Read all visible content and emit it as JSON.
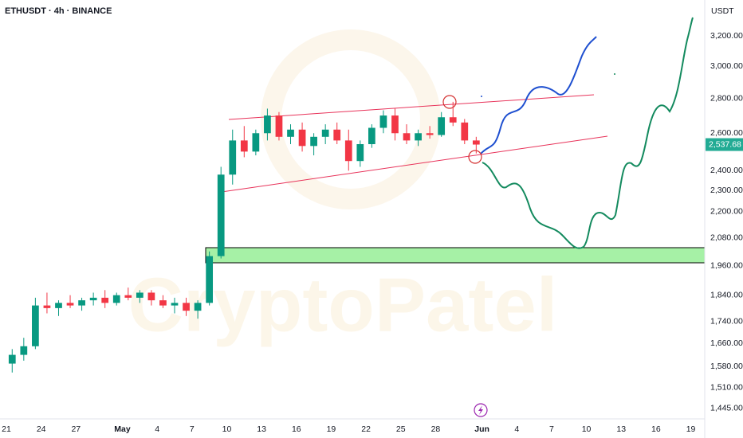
{
  "chart_data": {
    "type": "candlestick",
    "title": "ETHUSDT · 4h · BINANCE",
    "y_unit": "USDT",
    "watermark": "CryptoPatel",
    "log_scale": true,
    "grid": false,
    "up_color": "#089981",
    "down_color": "#f23645",
    "last_price_label": "2,537.68",
    "last_price_color": "#22ab94",
    "x": [
      0,
      1,
      2,
      3,
      4,
      5,
      6,
      7,
      8,
      9,
      10,
      11,
      12,
      13,
      14,
      15,
      16,
      17,
      18,
      19,
      20,
      21,
      22,
      23,
      24,
      25,
      26,
      27,
      28,
      29,
      30,
      31,
      32,
      33,
      34,
      35,
      36,
      37,
      38,
      39,
      40
    ],
    "open": [
      1590,
      1620,
      1650,
      1800,
      1790,
      1810,
      1800,
      1820,
      1830,
      1810,
      1840,
      1830,
      1850,
      1820,
      1800,
      1810,
      1780,
      1810,
      2000,
      2380,
      2560,
      2500,
      2600,
      2700,
      2580,
      2620,
      2530,
      2580,
      2620,
      2560,
      2450,
      2540,
      2630,
      2700,
      2600,
      2560,
      2600,
      2590,
      2690,
      2660,
      2560
    ],
    "high": [
      1640,
      1680,
      1830,
      1850,
      1820,
      1840,
      1830,
      1850,
      1860,
      1850,
      1870,
      1860,
      1860,
      1840,
      1830,
      1830,
      1820,
      2020,
      2420,
      2620,
      2640,
      2620,
      2740,
      2720,
      2650,
      2660,
      2600,
      2650,
      2660,
      2620,
      2560,
      2650,
      2730,
      2740,
      2650,
      2620,
      2640,
      2720,
      2780,
      2680,
      2580
    ],
    "low": [
      1560,
      1600,
      1640,
      1770,
      1760,
      1790,
      1780,
      1800,
      1790,
      1800,
      1820,
      1810,
      1800,
      1790,
      1770,
      1760,
      1750,
      1800,
      1990,
      2330,
      2470,
      2480,
      2560,
      2560,
      2540,
      2500,
      2480,
      2540,
      2540,
      2400,
      2420,
      2520,
      2600,
      2560,
      2540,
      2530,
      2570,
      2580,
      2640,
      2540,
      2490
    ],
    "close": [
      1620,
      1650,
      1800,
      1790,
      1810,
      1800,
      1820,
      1830,
      1810,
      1840,
      1830,
      1850,
      1820,
      1800,
      1810,
      1780,
      1810,
      2000,
      2380,
      2560,
      2500,
      2600,
      2700,
      2580,
      2620,
      2530,
      2580,
      2620,
      2560,
      2450,
      2540,
      2630,
      2700,
      2600,
      2560,
      2600,
      2590,
      2690,
      2660,
      2560,
      2537.68
    ],
    "xlim": [
      -0.55,
      60.2
    ],
    "xticks": [
      {
        "value": 0,
        "label": "21"
      },
      {
        "value": 3,
        "label": "24"
      },
      {
        "value": 6,
        "label": "27"
      },
      {
        "value": 10,
        "label": "May"
      },
      {
        "value": 13,
        "label": "4"
      },
      {
        "value": 16,
        "label": "7"
      },
      {
        "value": 19,
        "label": "10"
      },
      {
        "value": 22,
        "label": "13"
      },
      {
        "value": 25,
        "label": "16"
      },
      {
        "value": 28,
        "label": "19"
      },
      {
        "value": 31,
        "label": "22"
      },
      {
        "value": 34,
        "label": "25"
      },
      {
        "value": 37,
        "label": "28"
      },
      {
        "value": 41,
        "label": "Jun"
      },
      {
        "value": 44,
        "label": "4"
      },
      {
        "value": 47,
        "label": "7"
      },
      {
        "value": 50,
        "label": "10"
      },
      {
        "value": 53,
        "label": "13"
      },
      {
        "value": 56,
        "label": "16"
      },
      {
        "value": 59,
        "label": "19"
      }
    ],
    "ylim": [
      1413,
      3455
    ],
    "yticks": [
      {
        "value": 1445,
        "label": "1,445.00"
      },
      {
        "value": 1510,
        "label": "1,510.00"
      },
      {
        "value": 1580,
        "label": "1,580.00"
      },
      {
        "value": 1660,
        "label": "1,660.00"
      },
      {
        "value": 1740,
        "label": "1,740.00"
      },
      {
        "value": 1840,
        "label": "1,840.00"
      },
      {
        "value": 1960,
        "label": "1,960.00"
      },
      {
        "value": 2080,
        "label": "2,080.00"
      },
      {
        "value": 2200,
        "label": "2,200.00"
      },
      {
        "value": 2300,
        "label": "2,300.00"
      },
      {
        "value": 2400,
        "label": "2,400.00"
      },
      {
        "value": 2600,
        "label": "2,600.00"
      },
      {
        "value": 2800,
        "label": "2,800.00"
      },
      {
        "value": 3000,
        "label": "3,000.00"
      },
      {
        "value": 3200,
        "label": "3,200.00"
      }
    ]
  }
}
